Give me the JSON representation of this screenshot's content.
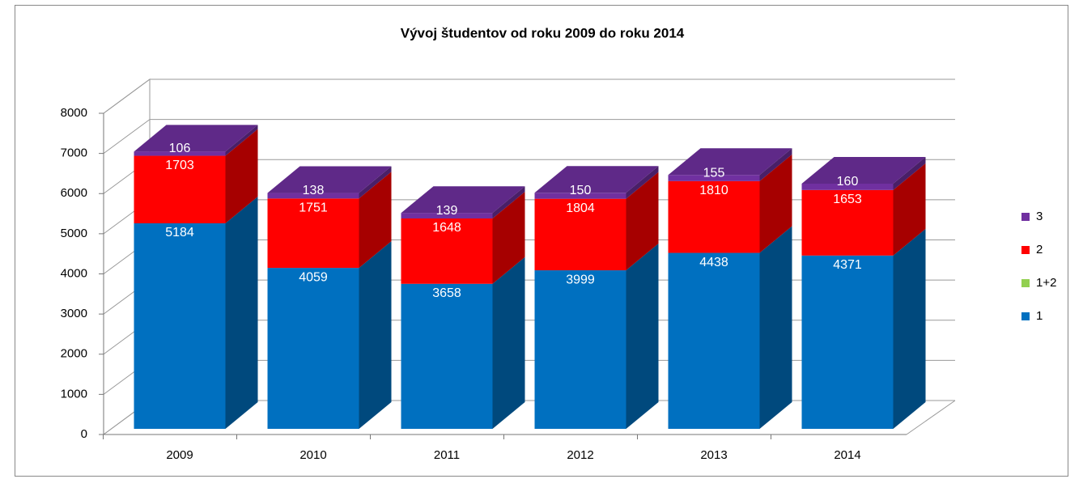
{
  "chart_data": {
    "type": "bar3d_stacked",
    "title": "Vývoj študentov od roku 2009 do roku 2014",
    "categories": [
      "2009",
      "2010",
      "2011",
      "2012",
      "2013",
      "2014"
    ],
    "series": [
      {
        "name": "1",
        "color": "#0070c0",
        "values": [
          5184,
          4059,
          3658,
          3999,
          4438,
          4371
        ]
      },
      {
        "name": "1+2",
        "color": "#92d050",
        "values": [
          0,
          0,
          0,
          0,
          0,
          0
        ]
      },
      {
        "name": "2",
        "color": "#ff0000",
        "values": [
          1703,
          1751,
          1648,
          1804,
          1810,
          1653
        ]
      },
      {
        "name": "3",
        "color": "#7030a0",
        "values": [
          106,
          138,
          139,
          150,
          155,
          160
        ]
      }
    ],
    "ylim": [
      0,
      8000
    ],
    "yticks": [
      0,
      1000,
      2000,
      3000,
      4000,
      5000,
      6000,
      7000,
      8000
    ],
    "grid": true,
    "legend": "right"
  }
}
